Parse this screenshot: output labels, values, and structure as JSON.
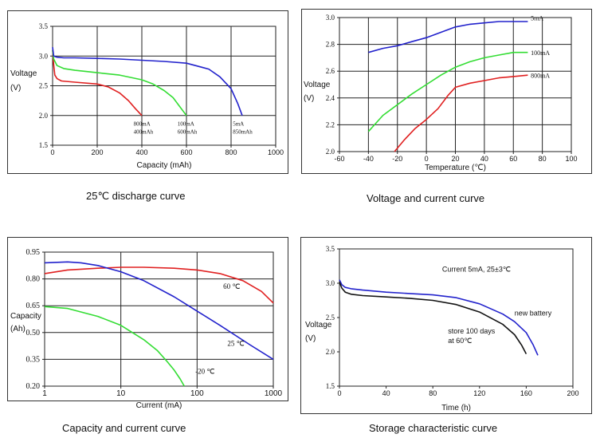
{
  "captions": [
    "25℃ discharge curve",
    "Voltage and current curve",
    "Capacity and current curve",
    "Storage characteristic curve"
  ],
  "chart_data": [
    {
      "type": "line",
      "xlabel": "Capacity (mAh)",
      "ylabel": [
        "Voltage",
        "(V)"
      ],
      "xlim": [
        0,
        1000
      ],
      "ylim": [
        1.5,
        3.5
      ],
      "xticks": [
        "0",
        "200",
        "400",
        "600",
        "800",
        "1000"
      ],
      "yticks": [
        "1.5",
        "2.0",
        "2.5",
        "3.0",
        "3.5"
      ],
      "grid": true,
      "series": [
        {
          "color": "#e02020",
          "x": [
            0,
            5,
            10,
            20,
            40,
            100,
            200,
            250,
            300,
            340,
            370,
            400
          ],
          "y": [
            3.1,
            2.85,
            2.68,
            2.62,
            2.58,
            2.56,
            2.53,
            2.48,
            2.38,
            2.25,
            2.12,
            2.0
          ]
        },
        {
          "color": "#33dd33",
          "x": [
            0,
            5,
            20,
            50,
            100,
            200,
            300,
            400,
            450,
            500,
            540,
            570,
            600
          ],
          "y": [
            3.1,
            2.95,
            2.84,
            2.79,
            2.76,
            2.72,
            2.68,
            2.6,
            2.53,
            2.42,
            2.3,
            2.15,
            2.0
          ]
        },
        {
          "color": "#2222cc",
          "x": [
            0,
            5,
            20,
            50,
            100,
            200,
            300,
            400,
            500,
            600,
            700,
            750,
            800,
            830,
            850
          ],
          "y": [
            3.15,
            3.0,
            2.98,
            2.97,
            2.97,
            2.96,
            2.95,
            2.93,
            2.91,
            2.88,
            2.78,
            2.65,
            2.45,
            2.2,
            2.0
          ]
        }
      ],
      "annotations": [
        {
          "lines": [
            "800mA",
            "400mAh"
          ],
          "x": 363,
          "y": 1.83
        },
        {
          "lines": [
            "100mA",
            "600mAh"
          ],
          "x": 560,
          "y": 1.83
        },
        {
          "lines": [
            "5mA",
            "850mAh"
          ],
          "x": 808,
          "y": 1.83
        }
      ]
    },
    {
      "type": "line",
      "xlabel": "Temperature (℃)",
      "ylabel": [
        "Voltage",
        "(V)"
      ],
      "xlim": [
        -60,
        100
      ],
      "ylim": [
        2.0,
        3.0
      ],
      "xticks": [
        "-60",
        "-40",
        "-20",
        "0",
        "20",
        "40",
        "60",
        "80",
        "100"
      ],
      "yticks": [
        "2.0",
        "2.2",
        "2.4",
        "2.6",
        "2.8",
        "3.0"
      ],
      "grid": true,
      "series": [
        {
          "color": "#2222cc",
          "x": [
            -40,
            -30,
            -20,
            -10,
            0,
            10,
            20,
            30,
            40,
            50,
            60,
            70
          ],
          "y": [
            2.74,
            2.77,
            2.79,
            2.82,
            2.85,
            2.89,
            2.93,
            2.95,
            2.96,
            2.97,
            2.97,
            2.97
          ]
        },
        {
          "color": "#33dd33",
          "x": [
            -40,
            -30,
            -20,
            -10,
            0,
            10,
            20,
            30,
            40,
            50,
            60,
            70
          ],
          "y": [
            2.15,
            2.27,
            2.35,
            2.43,
            2.5,
            2.57,
            2.63,
            2.67,
            2.7,
            2.72,
            2.74,
            2.74
          ]
        },
        {
          "color": "#e02020",
          "x": [
            -22,
            -15,
            -8,
            0,
            8,
            15,
            20,
            30,
            40,
            50,
            60,
            70
          ],
          "y": [
            2.0,
            2.09,
            2.17,
            2.24,
            2.32,
            2.42,
            2.48,
            2.51,
            2.53,
            2.55,
            2.56,
            2.57
          ]
        }
      ],
      "annotations": [
        {
          "lines": [
            "5mA"
          ],
          "x": 72,
          "y": 2.98
        },
        {
          "lines": [
            "100mA"
          ],
          "x": 72,
          "y": 2.72
        },
        {
          "lines": [
            "800mA"
          ],
          "x": 72,
          "y": 2.55
        }
      ]
    },
    {
      "type": "line",
      "xlabel": "Current (mA)",
      "ylabel": [
        "Capacity",
        "(Ah)"
      ],
      "xscale": "log",
      "xlim": [
        1,
        1000
      ],
      "ylim": [
        0.2,
        0.95
      ],
      "xticks": [
        "1",
        "10",
        "100",
        "1000"
      ],
      "yticks": [
        "0.20",
        "0.35",
        "0.50",
        "0.65",
        "0.80",
        "0.95"
      ],
      "grid": true,
      "series": [
        {
          "color": "#e02020",
          "x": [
            1,
            2,
            5,
            10,
            20,
            50,
            100,
            200,
            400,
            700,
            1000
          ],
          "y": [
            0.83,
            0.85,
            0.86,
            0.865,
            0.865,
            0.86,
            0.85,
            0.83,
            0.79,
            0.73,
            0.665
          ]
        },
        {
          "color": "#2222cc",
          "x": [
            1,
            2,
            3,
            5,
            10,
            20,
            50,
            100,
            200,
            500,
            1000
          ],
          "y": [
            0.89,
            0.895,
            0.89,
            0.875,
            0.84,
            0.79,
            0.7,
            0.62,
            0.54,
            0.43,
            0.35
          ]
        },
        {
          "color": "#33dd33",
          "x": [
            1,
            2,
            5,
            10,
            20,
            30,
            40,
            50,
            60,
            68
          ],
          "y": [
            0.645,
            0.635,
            0.59,
            0.54,
            0.46,
            0.4,
            0.34,
            0.29,
            0.24,
            0.2
          ]
        }
      ],
      "annotations": [
        {
          "lines": [
            "60 ℃"
          ],
          "x": 220,
          "y": 0.745
        },
        {
          "lines": [
            "25 ℃"
          ],
          "x": 250,
          "y": 0.425
        },
        {
          "lines": [
            "-20 ℃"
          ],
          "x": 95,
          "y": 0.27
        }
      ]
    },
    {
      "type": "line",
      "xlabel": "Time (h)",
      "ylabel": [
        "Voltage",
        "(V)"
      ],
      "xlim": [
        0,
        200
      ],
      "ylim": [
        1.5,
        3.5
      ],
      "xticks": [
        "0",
        "40",
        "80",
        "120",
        "160",
        "200"
      ],
      "yticks": [
        "1.5",
        "2.0",
        "2.5",
        "3.0",
        "3.5"
      ],
      "grid": false,
      "series": [
        {
          "color": "#2222cc",
          "x": [
            0,
            2,
            5,
            10,
            20,
            40,
            60,
            80,
            100,
            120,
            140,
            150,
            160,
            166,
            170
          ],
          "y": [
            3.05,
            2.98,
            2.94,
            2.92,
            2.9,
            2.87,
            2.85,
            2.83,
            2.79,
            2.7,
            2.55,
            2.44,
            2.28,
            2.1,
            1.95
          ]
        },
        {
          "color": "#111111",
          "x": [
            0,
            2,
            5,
            10,
            20,
            40,
            60,
            80,
            100,
            120,
            140,
            150,
            156,
            160
          ],
          "y": [
            3.02,
            2.93,
            2.87,
            2.84,
            2.82,
            2.8,
            2.78,
            2.75,
            2.69,
            2.58,
            2.4,
            2.25,
            2.1,
            1.97
          ]
        }
      ],
      "annotations": [
        {
          "lines": [
            "Current 5mA, 25±3℃"
          ],
          "x": 88,
          "y": 3.17
        },
        {
          "lines": [
            "new battery"
          ],
          "x": 150,
          "y": 2.53
        },
        {
          "lines": [
            "store 100 days",
            "at 60℃"
          ],
          "x": 93,
          "y": 2.27
        }
      ]
    }
  ]
}
